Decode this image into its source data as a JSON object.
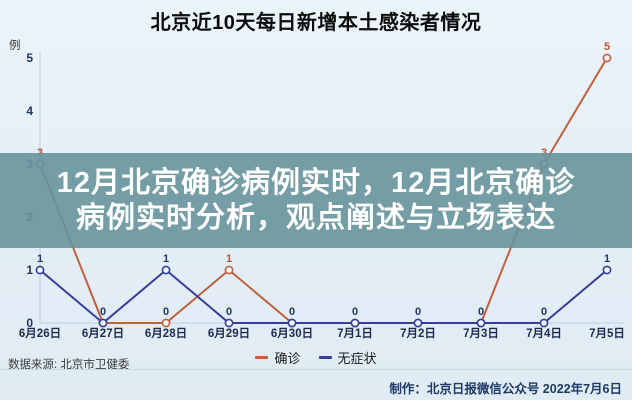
{
  "header": {
    "title": "北京近10天每日新增本土感染者情况"
  },
  "overlay": {
    "lines": [
      "12月北京确诊病例实时，12月北京确诊",
      "病例实时分析，观点阐述与立场表达"
    ],
    "background": "#68949b",
    "text_color": "#ffffff"
  },
  "chart_data": {
    "type": "line",
    "title": "北京近10天每日新增本土感染者情况",
    "unit_label": "例",
    "categories": [
      "6月26日",
      "6月27日",
      "6月28日",
      "6月29日",
      "6月30日",
      "7月1日",
      "7月2日",
      "7月3日",
      "7月4日",
      "7月5日"
    ],
    "series": [
      {
        "name": "确诊",
        "color": "#c0603c",
        "label_color": "#b4552f",
        "values": [
          3,
          0,
          0,
          1,
          0,
          0,
          0,
          0,
          3,
          5
        ]
      },
      {
        "name": "无症状",
        "color": "#333f99",
        "label_color": "#1e3766",
        "values": [
          1,
          0,
          1,
          0,
          0,
          0,
          0,
          0,
          0,
          1
        ]
      }
    ],
    "ylim": [
      0,
      5
    ],
    "yticks": [
      0,
      1,
      2,
      3,
      4,
      5
    ],
    "zero_label_color": "#1e3766",
    "axis_color": "#c0d0dc",
    "tick_label_color": "#22375c",
    "date_label_color": "#1d2b4f",
    "grid": false,
    "legend_position": "bottom"
  },
  "footer": {
    "source": "数据来源: 北京市卫健委",
    "credit": "制作：北京日报微信公众号  2022年7月6日"
  }
}
